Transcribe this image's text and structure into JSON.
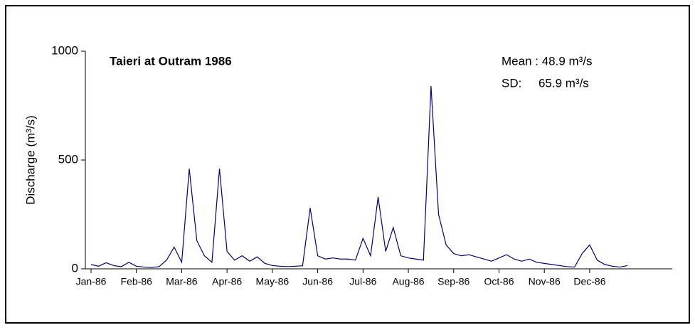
{
  "chart_data": {
    "type": "line",
    "title": "Taieri at Outram 1986",
    "annotations": [
      "Mean : 48.9 m³/s",
      "SD:     65.9 m³/s"
    ],
    "y_label": "Discharge (m³/s)",
    "categories": [
      "Jan-86",
      null,
      null,
      null,
      null,
      null,
      "Feb-86",
      null,
      null,
      null,
      null,
      null,
      "Mar-86",
      null,
      null,
      null,
      null,
      null,
      "Apr-86",
      null,
      null,
      null,
      null,
      null,
      "May-86",
      null,
      null,
      null,
      null,
      null,
      "Jun-86",
      null,
      null,
      null,
      null,
      null,
      "Jul-86",
      null,
      null,
      null,
      null,
      null,
      "Aug-86",
      null,
      null,
      null,
      null,
      null,
      "Sep-86",
      null,
      null,
      null,
      null,
      null,
      "Oct-86",
      null,
      null,
      null,
      null,
      null,
      "Nov-86",
      null,
      null,
      null,
      null,
      null,
      "Dec-86",
      null,
      null,
      null,
      null,
      null
    ],
    "series": [
      {
        "color": "#000080",
        "values": [
          20,
          12,
          28,
          15,
          10,
          30,
          12,
          8,
          6,
          10,
          40,
          100,
          30,
          460,
          130,
          60,
          30,
          460,
          80,
          40,
          60,
          35,
          55,
          25,
          15,
          12,
          10,
          12,
          14,
          280,
          60,
          45,
          50,
          45,
          45,
          40,
          140,
          60,
          330,
          80,
          190,
          60,
          50,
          45,
          40,
          840,
          250,
          110,
          70,
          60,
          65,
          55,
          45,
          35,
          50,
          65,
          45,
          35,
          45,
          30,
          25,
          20,
          15,
          10,
          8,
          70,
          110,
          40,
          20,
          12,
          8,
          15
        ]
      }
    ],
    "ylim": [
      0,
      1000
    ],
    "yticks": [
      0,
      500,
      1000
    ],
    "grid": false
  }
}
